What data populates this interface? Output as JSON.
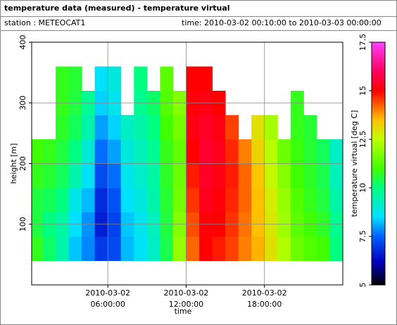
{
  "chart_data": {
    "type": "heatmap",
    "title": "temperature data (measured) - temperature virtual",
    "station": "station : METEOCAT1",
    "time_range": "time: 2010-03-02 00:10:00 to 2010-03-03 00:00:00",
    "xlabel": "time",
    "ylabel": "height [m]",
    "colorbar_label": "temperature virtual [deg C]",
    "x": [
      "2010-03-02 00:10:00",
      "2010-03-02 01:00:00",
      "2010-03-02 02:00:00",
      "2010-03-02 03:00:00",
      "2010-03-02 04:00:00",
      "2010-03-02 05:00:00",
      "2010-03-02 06:00:00",
      "2010-03-02 07:00:00",
      "2010-03-02 08:00:00",
      "2010-03-02 09:00:00",
      "2010-03-02 10:00:00",
      "2010-03-02 11:00:00",
      "2010-03-02 12:00:00",
      "2010-03-02 13:00:00",
      "2010-03-02 14:00:00",
      "2010-03-02 15:00:00",
      "2010-03-02 16:00:00",
      "2010-03-02 17:00:00",
      "2010-03-02 18:00:00",
      "2010-03-02 19:00:00",
      "2010-03-02 20:00:00",
      "2010-03-02 21:00:00",
      "2010-03-02 22:00:00",
      "2010-03-02 23:00:00"
    ],
    "y_bins": [
      40,
      80,
      120,
      160,
      200,
      240,
      280,
      320,
      360
    ],
    "z": [
      [
        10.8,
        10.5,
        10.5,
        10.8,
        11,
        null,
        null,
        null
      ],
      [
        10.2,
        10,
        10.3,
        10.6,
        10.8,
        null,
        null,
        null
      ],
      [
        9.5,
        9.6,
        10,
        10.3,
        10.5,
        10.7,
        10.8,
        10.8
      ],
      [
        8.3,
        8.5,
        8.8,
        9.5,
        10,
        10.3,
        10.5,
        10.6
      ],
      [
        7.8,
        7.9,
        8.2,
        8.6,
        9,
        9.5,
        9.8,
        null
      ],
      [
        7,
        6.6,
        6.8,
        7.2,
        7.6,
        8,
        8.4,
        8.6
      ],
      [
        7.2,
        7.1,
        7.3,
        7.6,
        8,
        8.4,
        8.7,
        8.9
      ],
      [
        8.2,
        8.3,
        8.5,
        8.7,
        8.9,
        9.2,
        null,
        null
      ],
      [
        8.6,
        8.7,
        8.9,
        9.1,
        9.3,
        9.5,
        9.8,
        10
      ],
      [
        9.2,
        9.3,
        9.5,
        9.6,
        9.8,
        10,
        10.2,
        null
      ],
      [
        10.4,
        10.5,
        10.6,
        10.7,
        10.8,
        11,
        11.2,
        11.3
      ],
      [
        12,
        11.8,
        11.6,
        11.5,
        11.4,
        11.6,
        11.8,
        null
      ],
      [
        14.2,
        14.4,
        14.6,
        14.8,
        15,
        15.2,
        15.1,
        15
      ],
      [
        15,
        15.1,
        15.3,
        15.4,
        15.5,
        15.4,
        15.2,
        15
      ],
      [
        14.8,
        15,
        15.1,
        15.2,
        15.3,
        15.2,
        15,
        null
      ],
      [
        14.5,
        14.6,
        14.7,
        14.8,
        14.7,
        14.5,
        null,
        null
      ],
      [
        14,
        14.1,
        14.2,
        14.2,
        14,
        null,
        null,
        null
      ],
      [
        13.6,
        13.5,
        13.5,
        13.4,
        13.2,
        13,
        null,
        null
      ],
      [
        13,
        12.9,
        12.8,
        12.6,
        12.4,
        12.2,
        null,
        null
      ],
      [
        12.3,
        12.1,
        12,
        11.8,
        11.5,
        null,
        null,
        null
      ],
      [
        11.5,
        11.3,
        11.2,
        11,
        10.9,
        10.8,
        10.8,
        null
      ],
      [
        11.2,
        11,
        10.8,
        10.7,
        10.6,
        10.6,
        null,
        null
      ],
      [
        11,
        10.7,
        10.5,
        10.4,
        10.3,
        null,
        null,
        null
      ],
      [
        10,
        9.8,
        9.5,
        9.3,
        9.2,
        null,
        null,
        null
      ]
    ],
    "xlim": [
      "2010-03-02 00:10:00",
      "2010-03-03 00:00:00"
    ],
    "xticks": [
      "2010-03-02 06:00:00",
      "2010-03-02 12:00:00",
      "2010-03-02 18:00:00"
    ],
    "ylim": [
      0,
      400
    ],
    "yticks": [
      100,
      200,
      300,
      400
    ],
    "zlim": [
      5,
      17.5
    ],
    "zticks": [
      5,
      7.5,
      10,
      12.5,
      15,
      17.5
    ],
    "colorscale": [
      [
        5,
        "#000000"
      ],
      [
        6.2,
        "#0000c0"
      ],
      [
        7.5,
        "#0060ff"
      ],
      [
        8.5,
        "#00e0ff"
      ],
      [
        10,
        "#00ff80"
      ],
      [
        11,
        "#40ff00"
      ],
      [
        12.5,
        "#c0ff00"
      ],
      [
        13.5,
        "#ffc000"
      ],
      [
        15,
        "#ff0000"
      ],
      [
        16,
        "#ff0060"
      ],
      [
        17.5,
        "#ff40ff"
      ]
    ],
    "grid": true
  }
}
